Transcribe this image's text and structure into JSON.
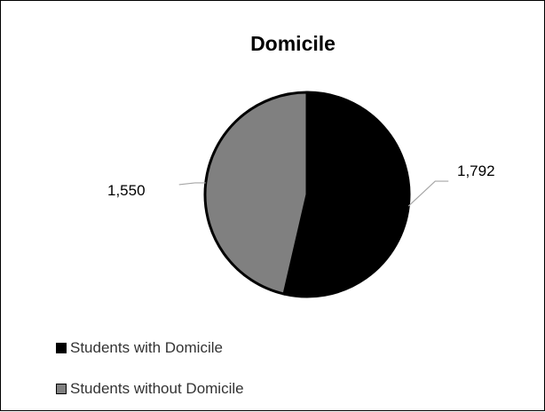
{
  "chart_data": {
    "type": "pie",
    "title": "Domicile",
    "slices": [
      {
        "name": "Students with Domicile",
        "value": 1792,
        "label": "1,792",
        "color": "#000000"
      },
      {
        "name": "Students without Domicile",
        "value": 1550,
        "label": "1,550",
        "color": "#808080"
      }
    ],
    "legend_position": "bottom-left"
  }
}
